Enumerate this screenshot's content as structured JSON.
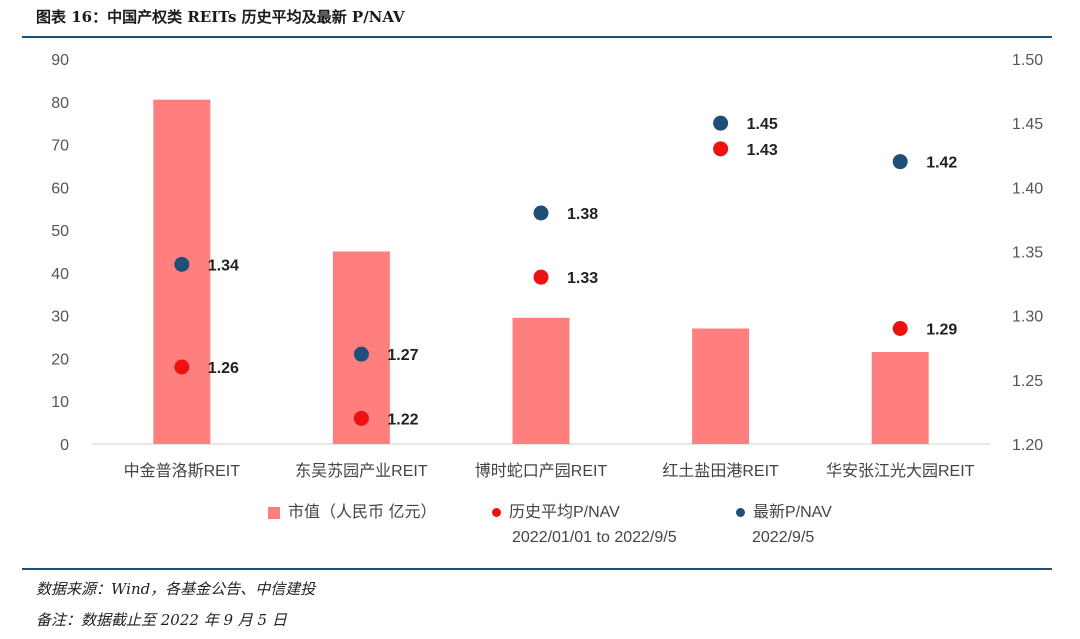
{
  "figure_title": "图表 16：中国产权类 REITs  历史平均及最新 P/NAV",
  "source": "数据来源：Wind，各基金公告、中信建投",
  "remark": "备注：数据截止至 2022 年 9 月 5 日",
  "colors": {
    "bar": "#ff7f7f",
    "hist": "#ee1111",
    "latest": "#1f4e79"
  },
  "chart_data": {
    "type": "bar",
    "categories": [
      "中金普洛斯REIT",
      "东吴苏园产业REIT",
      "博时蛇口产园REIT",
      "红土盐田港REIT",
      "华安张江光大园REIT"
    ],
    "series": [
      {
        "name": "市值（人民币 亿元）",
        "type": "bar",
        "axis": "left",
        "values": [
          80.5,
          45,
          29.5,
          27,
          21.5
        ]
      },
      {
        "name": "历史平均P/NAV 2022/01/01 to 2022/9/5",
        "type": "scatter",
        "axis": "right",
        "values": [
          1.26,
          1.22,
          1.33,
          1.43,
          1.29
        ]
      },
      {
        "name": "最新P/NAV 2022/9/5",
        "type": "scatter",
        "axis": "right",
        "values": [
          1.34,
          1.27,
          1.38,
          1.45,
          1.42
        ]
      }
    ],
    "y_left": {
      "min": 0,
      "max": 90,
      "ticks": [
        "0",
        "10",
        "20",
        "30",
        "40",
        "50",
        "60",
        "70",
        "80",
        "90"
      ]
    },
    "y_right": {
      "min": 1.2,
      "max": 1.5,
      "ticks": [
        "1.20",
        "1.25",
        "1.30",
        "1.35",
        "1.40",
        "1.45",
        "1.50"
      ]
    },
    "data_labels": {
      "hist": [
        "1.26",
        "1.22",
        "1.33",
        "1.43",
        "1.29"
      ],
      "latest": [
        "1.34",
        "1.27",
        "1.38",
        "1.45",
        "1.42"
      ]
    },
    "legend": {
      "bar": "市值（人民币 亿元）",
      "hist_line1": "历史平均P/NAV",
      "hist_line2": "2022/01/01 to 2022/9/5",
      "latest_line1": "最新P/NAV",
      "latest_line2": "2022/9/5",
      "position": "bottom"
    },
    "grid": false
  }
}
